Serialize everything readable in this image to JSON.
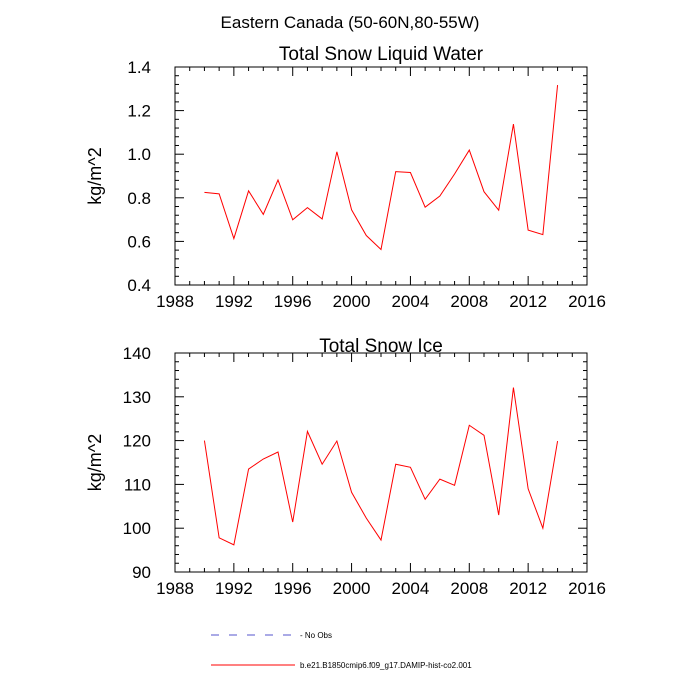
{
  "figure": {
    "suptitle": "Eastern Canada (50-60N,80-55W)"
  },
  "legend": {
    "items": [
      {
        "label": "No Obs",
        "color": "#5555cc",
        "dash": true
      },
      {
        "label": "b.e21.B1850cmip6.f09_g17.DAMIP-hist-co2.001",
        "color": "#ff0000",
        "dash": false
      }
    ]
  },
  "chart_data": [
    {
      "type": "line",
      "title": "Total Snow Liquid Water",
      "xlabel": "",
      "ylabel": "kg/m^2",
      "xlim": [
        1988,
        2016
      ],
      "ylim": [
        0.4,
        1.4
      ],
      "xticks": [
        1988,
        1992,
        1996,
        2000,
        2004,
        2008,
        2012,
        2016
      ],
      "yticks": [
        0.4,
        0.6,
        0.8,
        1.0,
        1.2,
        1.4
      ],
      "ytick_labels": [
        "0.4",
        "0.6",
        "0.8",
        "1.0",
        "1.2",
        "1.4"
      ],
      "x": [
        1990,
        1991,
        1992,
        1993,
        1994,
        1995,
        1996,
        1997,
        1998,
        1999,
        2000,
        2001,
        2002,
        2003,
        2004,
        2005,
        2006,
        2007,
        2008,
        2009,
        2010,
        2011,
        2012,
        2013,
        2014
      ],
      "series": [
        {
          "color": "#ff0000",
          "values": [
            0.825,
            0.818,
            0.613,
            0.832,
            0.724,
            0.882,
            0.699,
            0.755,
            0.703,
            1.011,
            0.745,
            0.627,
            0.563,
            0.92,
            0.916,
            0.757,
            0.808,
            0.909,
            1.019,
            0.828,
            0.743,
            1.138,
            0.652,
            0.631,
            1.317
          ]
        }
      ]
    },
    {
      "type": "line",
      "title": "Total Snow Ice",
      "xlabel": "",
      "ylabel": "kg/m^2",
      "xlim": [
        1988,
        2016
      ],
      "ylim": [
        90,
        140
      ],
      "xticks": [
        1988,
        1992,
        1996,
        2000,
        2004,
        2008,
        2012,
        2016
      ],
      "yticks": [
        90,
        100,
        110,
        120,
        130,
        140
      ],
      "ytick_labels": [
        "90",
        "100",
        "110",
        "120",
        "130",
        "140"
      ],
      "x": [
        1990,
        1991,
        1992,
        1993,
        1994,
        1995,
        1996,
        1997,
        1998,
        1999,
        2000,
        2001,
        2002,
        2003,
        2004,
        2005,
        2006,
        2007,
        2008,
        2009,
        2010,
        2011,
        2012,
        2013,
        2014
      ],
      "series": [
        {
          "color": "#ff0000",
          "values": [
            120.0,
            97.8,
            96.2,
            113.5,
            115.8,
            117.4,
            101.4,
            122.1,
            114.6,
            119.9,
            108.2,
            102.3,
            97.3,
            114.6,
            113.9,
            106.6,
            111.2,
            109.8,
            123.5,
            121.2,
            103.0,
            132.1,
            109.0,
            100.0,
            119.9
          ]
        }
      ]
    }
  ]
}
